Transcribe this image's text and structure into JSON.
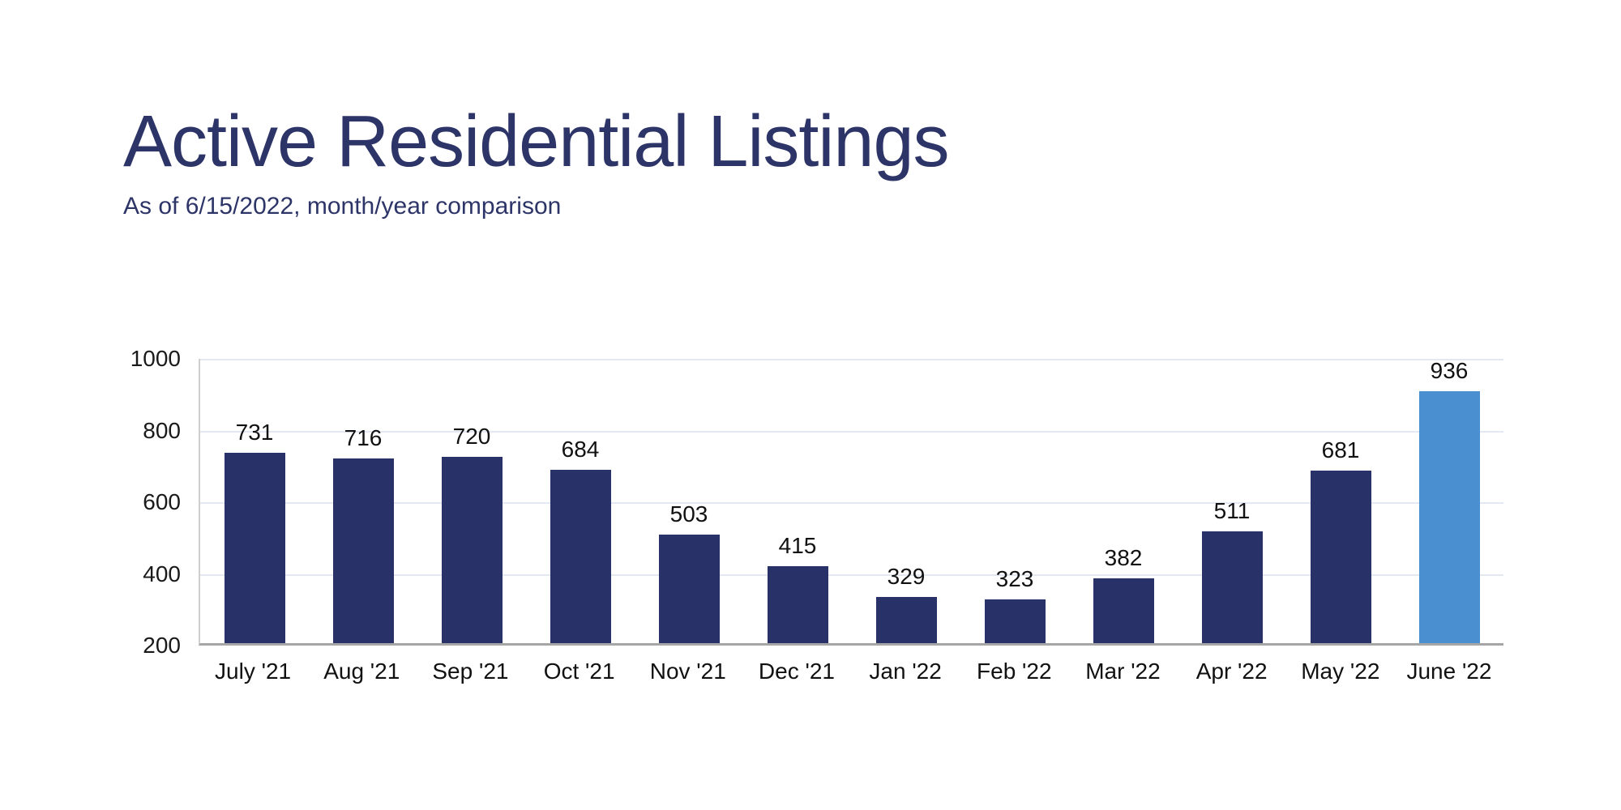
{
  "header": {
    "title": "Active Residential Listings",
    "subtitle": "As of 6/15/2022, month/year comparison"
  },
  "chart_data": {
    "type": "bar",
    "title": "Active Residential Listings",
    "subtitle": "As of 6/15/2022, month/year comparison",
    "categories": [
      "July '21",
      "Aug '21",
      "Sep '21",
      "Oct '21",
      "Nov '21",
      "Dec '21",
      "Jan '22",
      "Feb '22",
      "Mar '22",
      "Apr '22",
      "May '22",
      "June '22"
    ],
    "values": [
      731,
      716,
      720,
      684,
      503,
      415,
      329,
      323,
      382,
      511,
      681,
      936
    ],
    "data_labels_shown": true,
    "highlight_index": 11,
    "xlabel": "",
    "ylabel": "",
    "ylim": [
      200,
      1000
    ],
    "y_ticks": [
      1000,
      800,
      600,
      400,
      200
    ],
    "grid": "horizontal",
    "legend": "none",
    "colors": {
      "bar": "#293169",
      "highlight_bar": "#4a90d0",
      "gridline": "#e3e9f3",
      "baseline": "#a6a6a6",
      "y_axis_line": "#cfcfcf",
      "tick_label": "#111111",
      "title_text": "#2d3568"
    }
  }
}
